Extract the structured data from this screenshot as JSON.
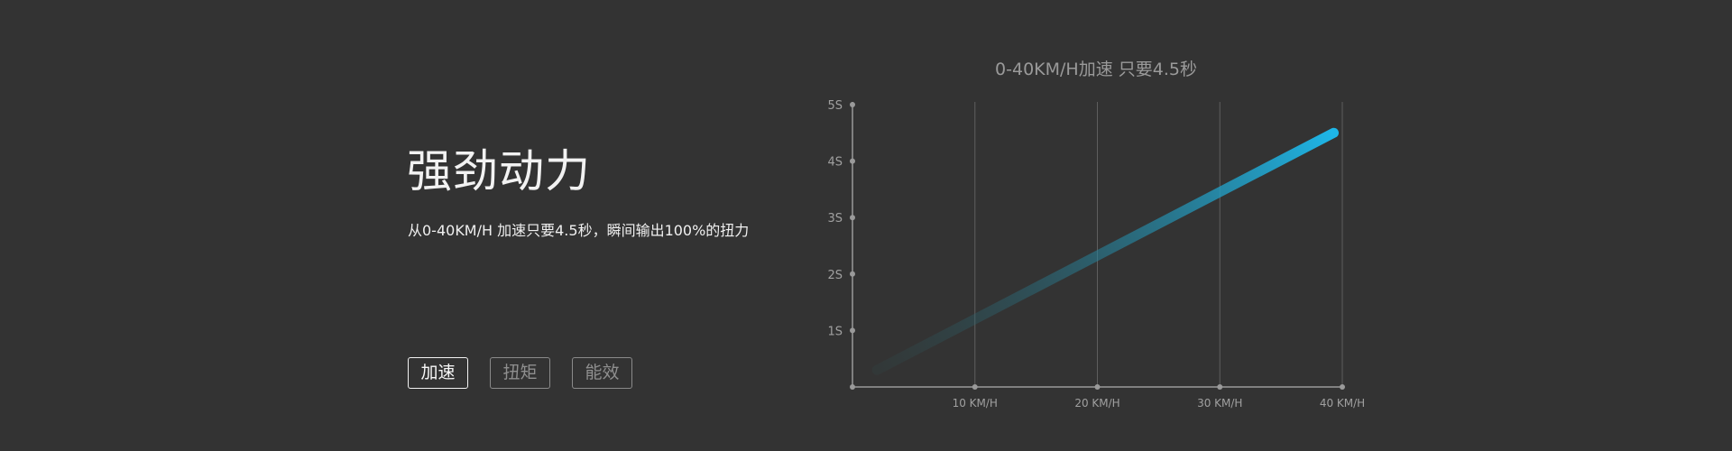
{
  "hero": {
    "headline": "强劲动力",
    "subtitle": "从0-40KM/H 加速只要4.5秒，瞬间输出100%的扭力"
  },
  "tabs": [
    {
      "label": "加速",
      "active": true
    },
    {
      "label": "扭矩",
      "active": false
    },
    {
      "label": "能效",
      "active": false
    }
  ],
  "colors": {
    "background": "#333333",
    "line_start": "#2f4f4f",
    "line_end": "#1eb6e8",
    "axis": "#9a9a9a",
    "grid": "#5e5e5e"
  },
  "chart_data": {
    "type": "line",
    "title": "0-40KM/H加速 只要4.5秒",
    "xlabel": "",
    "ylabel": "",
    "x_ticks": [
      {
        "value": 10,
        "label": "10 KM/H"
      },
      {
        "value": 20,
        "label": "20 KM/H"
      },
      {
        "value": 30,
        "label": "30 KM/H"
      },
      {
        "value": 40,
        "label": "40 KM/H"
      }
    ],
    "y_ticks": [
      {
        "value": 1,
        "label": "1S"
      },
      {
        "value": 2,
        "label": "2S"
      },
      {
        "value": 3,
        "label": "3S"
      },
      {
        "value": 4,
        "label": "4S"
      },
      {
        "value": 5,
        "label": "5S"
      }
    ],
    "xlim": [
      0,
      40
    ],
    "ylim": [
      0,
      5
    ],
    "grid": "vertical",
    "series": [
      {
        "x": [
          2,
          39.3
        ],
        "y": [
          0.3,
          4.5
        ]
      }
    ]
  }
}
